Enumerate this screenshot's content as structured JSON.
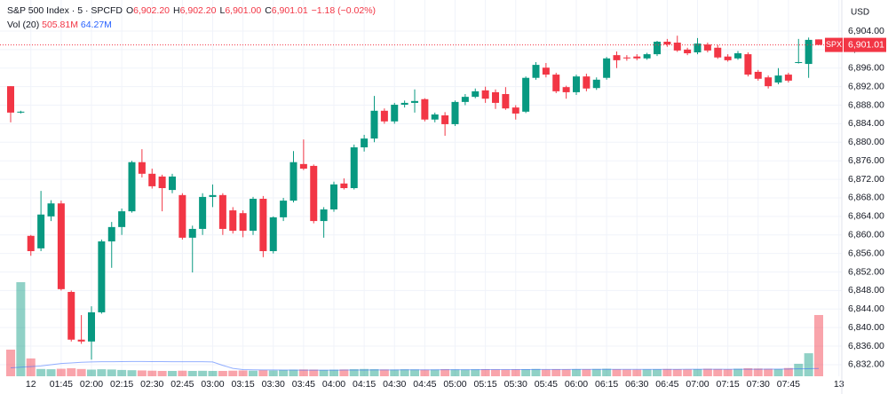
{
  "chart_data": {
    "type": "candlestick",
    "legend": {
      "title": "S&P 500 Index · 5 · SPCFD",
      "items": [
        {
          "key": "O",
          "value": "6,902.20"
        },
        {
          "key": "H",
          "value": "6,902.20"
        },
        {
          "key": "L",
          "value": "6,901.00"
        },
        {
          "key": "C",
          "value": "6,901.01"
        }
      ],
      "change": "−1.18 (−0.02%)"
    },
    "volume_legend": {
      "label": "Vol (20)",
      "volume": "505.81M",
      "ma": "64.27M"
    },
    "currency": "USD",
    "symbol_tag": "SPX",
    "last_price": {
      "value": 6901.01,
      "label": "6,901.01"
    },
    "up_color": "#089981",
    "down_color": "#f23645",
    "ma_color": "#2962ff",
    "categories": [
      null,
      null,
      "12",
      null,
      null,
      "01:45",
      null,
      null,
      "02:00",
      null,
      null,
      "02:15",
      null,
      null,
      "02:30",
      null,
      null,
      "02:45",
      null,
      null,
      "03:00",
      null,
      null,
      "03:15",
      null,
      null,
      "03:30",
      null,
      null,
      "03:45",
      null,
      null,
      "04:00",
      null,
      null,
      "04:15",
      null,
      null,
      "04:30",
      null,
      null,
      "04:45",
      null,
      null,
      "05:00",
      null,
      null,
      "05:15",
      null,
      null,
      "05:30",
      null,
      null,
      "05:45",
      null,
      null,
      "06:00",
      null,
      null,
      "06:15",
      null,
      null,
      "06:30",
      null,
      null,
      "06:45",
      null,
      null,
      "07:00",
      null,
      null,
      "07:15",
      null,
      null,
      "07:30",
      null,
      null,
      "07:45",
      null,
      null,
      null,
      null,
      "13"
    ],
    "open": [
      6892.1,
      6886.4,
      6859.8,
      6857.1,
      6864.0,
      6866.8,
      6847.7,
      6837.4,
      6837.0,
      6843.3,
      6858.6,
      6861.7,
      6865.1,
      6875.7,
      6873.2,
      6872.6,
      6869.7,
      6868.6,
      6859.4,
      6861.3,
      6868.2,
      6868.6,
      6865.3,
      6864.7,
      6860.9,
      6867.8,
      6856.5,
      6863.8,
      6867.4,
      6875.3,
      6874.9,
      6863.0,
      6865.5,
      6871.1,
      6870.1,
      6878.9,
      6880.8,
      6886.8,
      6884.5,
      6888.1,
      6888.5,
      6889.3,
      6884.9,
      6885.8,
      6883.9,
      6888.7,
      6889.8,
      6891.2,
      6890.8,
      6890.4,
      6887.5,
      6886.6,
      6893.9,
      6896.1,
      6894.6,
      6891.9,
      6890.8,
      6894.2,
      6891.7,
      6893.9,
      6898.8,
      6898.3,
      6898.5,
      6898.1,
      6899.0,
      6901.7,
      6901.5,
      6900.0,
      6899.4,
      6901.1,
      6900.4,
      6898.5,
      6898.1,
      6899.0,
      6895.2,
      6894.0,
      6892.9,
      6894.6,
      6897.1,
      6896.9,
      6902.2,
      null,
      null
    ],
    "high": [
      6892.1,
      6886.8,
      6860.0,
      6869.5,
      6867.5,
      6867.4,
      6848.0,
      6842.7,
      6844.6,
      6859.0,
      6862.8,
      6865.7,
      6876.0,
      6878.5,
      6874.3,
      6873.0,
      6873.2,
      6869.0,
      6862.0,
      6869.0,
      6870.9,
      6869.0,
      6866.0,
      6865.3,
      6868.2,
      6868.4,
      6864.0,
      6868.0,
      6878.1,
      6880.6,
      6875.2,
      6866.0,
      6871.5,
      6872.2,
      6879.5,
      6881.6,
      6890.0,
      6887.3,
      6888.5,
      6889.0,
      6891.4,
      6889.5,
      6886.4,
      6886.5,
      6889.0,
      6890.4,
      6891.6,
      6892.0,
      6891.4,
      6891.9,
      6888.0,
      6894.2,
      6897.3,
      6897.1,
      6895.0,
      6892.2,
      6894.6,
      6894.8,
      6894.0,
      6898.4,
      6899.6,
      6898.8,
      6899.0,
      6899.3,
      6901.9,
      6902.3,
      6903.0,
      6900.4,
      6902.5,
      6901.5,
      6901.0,
      6899.0,
      6899.7,
      6899.4,
      6895.6,
      6894.4,
      6896.0,
      6895.0,
      6902.3,
      6902.6,
      6902.2,
      null,
      null
    ],
    "low": [
      6884.3,
      6886.2,
      6855.5,
      6856.5,
      6863.0,
      6848.0,
      6837.0,
      6836.5,
      6833.1,
      6843.0,
      6852.9,
      6860.0,
      6864.8,
      6872.4,
      6870.0,
      6865.1,
      6869.0,
      6859.0,
      6851.9,
      6860.0,
      6866.0,
      6860.0,
      6860.3,
      6859.5,
      6860.0,
      6855.2,
      6856.0,
      6863.0,
      6867.0,
      6874.0,
      6862.5,
      6859.4,
      6865.0,
      6869.8,
      6869.8,
      6878.0,
      6880.0,
      6884.0,
      6884.0,
      6887.5,
      6886.4,
      6884.5,
      6884.3,
      6881.4,
      6883.5,
      6888.0,
      6889.5,
      6888.5,
      6887.2,
      6887.0,
      6884.9,
      6886.3,
      6893.5,
      6894.0,
      6890.6,
      6889.4,
      6890.2,
      6891.0,
      6891.3,
      6893.5,
      6896.0,
      6897.6,
      6897.7,
      6897.8,
      6898.6,
      6900.6,
      6899.5,
      6898.8,
      6899.0,
      6899.4,
      6898.0,
      6897.4,
      6897.8,
      6894.2,
      6893.3,
      6891.6,
      6892.5,
      6892.9,
      6897.0,
      6893.9,
      6901.0,
      null,
      null
    ],
    "close": [
      6886.4,
      6886.6,
      6856.5,
      6864.4,
      6866.8,
      6848.3,
      6837.4,
      6837.0,
      6843.3,
      6858.6,
      6861.7,
      6865.1,
      6875.7,
      6873.2,
      6870.5,
      6870.1,
      6872.6,
      6859.4,
      6861.3,
      6868.2,
      6868.6,
      6861.3,
      6860.9,
      6860.9,
      6867.8,
      6856.5,
      6863.8,
      6867.4,
      6875.7,
      6874.3,
      6863.0,
      6865.5,
      6870.9,
      6870.1,
      6878.9,
      6880.8,
      6886.8,
      6884.5,
      6888.1,
      6888.5,
      6888.9,
      6884.9,
      6886.0,
      6883.9,
      6888.7,
      6889.8,
      6891.0,
      6889.4,
      6888.5,
      6887.3,
      6886.2,
      6893.9,
      6896.7,
      6894.6,
      6891.0,
      6890.8,
      6894.2,
      6891.6,
      6893.5,
      6898.1,
      6897.7,
      6898.1,
      6898.1,
      6899.0,
      6901.7,
      6901.1,
      6899.8,
      6899.2,
      6901.3,
      6899.8,
      6898.3,
      6897.7,
      6899.2,
      6894.6,
      6893.7,
      6892.1,
      6894.4,
      6893.3,
      6897.3,
      6902.1,
      6901.01,
      null,
      null
    ],
    "volume": [
      220,
      777,
      147,
      60,
      58,
      62,
      66,
      60,
      55,
      58,
      56,
      52,
      50,
      48,
      46,
      44,
      44,
      46,
      44,
      45,
      44,
      44,
      46,
      48,
      46,
      50,
      48,
      52,
      54,
      56,
      55,
      52,
      54,
      56,
      58,
      60,
      58,
      56,
      55,
      57,
      56,
      54,
      55,
      58,
      56,
      55,
      57,
      58,
      56,
      55,
      57,
      58,
      60,
      56,
      58,
      57,
      59,
      58,
      60,
      62,
      58,
      56,
      55,
      57,
      58,
      60,
      58,
      57,
      59,
      62,
      60,
      58,
      62,
      66,
      64,
      62,
      60,
      68,
      103,
      190,
      505.81,
      null,
      null
    ],
    "ma": [
      70,
      75,
      80,
      85,
      95,
      105,
      110,
      115,
      118,
      120,
      120,
      121,
      122,
      122,
      121,
      121,
      120,
      120,
      120,
      120,
      118,
      90,
      65,
      55,
      53,
      52,
      52,
      51,
      51,
      50,
      50,
      50,
      50,
      51,
      51,
      51,
      52,
      52,
      52,
      53,
      53,
      53,
      53,
      54,
      54,
      54,
      54,
      55,
      55,
      55,
      55,
      55,
      56,
      56,
      56,
      56,
      57,
      57,
      57,
      57,
      57,
      57,
      57,
      57,
      57,
      57,
      57,
      58,
      58,
      58,
      58,
      58,
      58,
      58,
      58,
      59,
      59,
      60,
      61,
      62,
      64.27,
      null,
      null
    ],
    "ylim": [
      6829.5,
      6910.7
    ],
    "yticks": [
      {
        "value": 6832,
        "label": "6,832.00"
      },
      {
        "value": 6836,
        "label": "6,836.00"
      },
      {
        "value": 6840,
        "label": "6,840.00"
      },
      {
        "value": 6844,
        "label": "6,844.00"
      },
      {
        "value": 6848,
        "label": "6,848.00"
      },
      {
        "value": 6852,
        "label": "6,852.00"
      },
      {
        "value": 6856,
        "label": "6,856.00"
      },
      {
        "value": 6860,
        "label": "6,860.00"
      },
      {
        "value": 6864,
        "label": "6,864.00"
      },
      {
        "value": 6868,
        "label": "6,868.00"
      },
      {
        "value": 6872,
        "label": "6,872.00"
      },
      {
        "value": 6876,
        "label": "6,876.00"
      },
      {
        "value": 6880,
        "label": "6,880.00"
      },
      {
        "value": 6884,
        "label": "6,884.00"
      },
      {
        "value": 6888,
        "label": "6,888.00"
      },
      {
        "value": 6892,
        "label": "6,892.00"
      },
      {
        "value": 6896,
        "label": "6,896.00"
      },
      {
        "value": 6900,
        "label": "6,900.00"
      },
      {
        "value": 6904,
        "label": "6,904.00"
      }
    ],
    "grid": true
  }
}
